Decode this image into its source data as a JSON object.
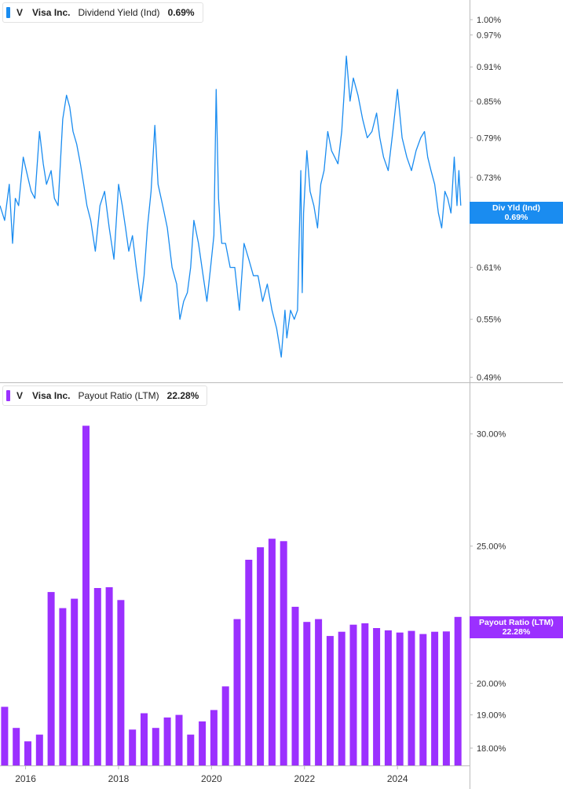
{
  "colors": {
    "yield": "#1a8cf0",
    "payout": "#9b30ff",
    "axis": "#bbbbbb",
    "text": "#333333"
  },
  "chart_data": [
    {
      "type": "line",
      "ticker": "V",
      "company": "Visa Inc.",
      "metric": "Dividend Yield (Ind)",
      "current_value": "0.69%",
      "badge_label": "Div Yld (Ind)",
      "badge_value": "0.69%",
      "y_scale": "log",
      "y_ticks": [
        "1.00%",
        "0.97%",
        "0.91%",
        "0.85%",
        "0.79%",
        "0.73%",
        "0.67%",
        "0.61%",
        "0.55%",
        "0.49%"
      ],
      "y_tick_values": [
        1.0,
        0.97,
        0.91,
        0.85,
        0.79,
        0.73,
        0.67,
        0.61,
        0.55,
        0.49
      ],
      "ylim": [
        0.485,
        1.04
      ],
      "xlim": [
        2015.45,
        2025.55
      ],
      "x": [
        2015.45,
        2015.55,
        2015.65,
        2015.72,
        2015.78,
        2015.85,
        2015.95,
        2016.05,
        2016.12,
        2016.2,
        2016.3,
        2016.38,
        2016.45,
        2016.55,
        2016.62,
        2016.7,
        2016.8,
        2016.88,
        2016.95,
        2017.02,
        2017.1,
        2017.18,
        2017.25,
        2017.32,
        2017.4,
        2017.5,
        2017.6,
        2017.7,
        2017.8,
        2017.9,
        2018.0,
        2018.08,
        2018.15,
        2018.22,
        2018.3,
        2018.38,
        2018.48,
        2018.55,
        2018.62,
        2018.7,
        2018.78,
        2018.85,
        2018.95,
        2019.05,
        2019.15,
        2019.25,
        2019.32,
        2019.4,
        2019.48,
        2019.55,
        2019.62,
        2019.72,
        2019.82,
        2019.9,
        2019.98,
        2020.05,
        2020.1,
        2020.15,
        2020.18,
        2020.22,
        2020.3,
        2020.4,
        2020.5,
        2020.6,
        2020.7,
        2020.8,
        2020.9,
        2021.0,
        2021.1,
        2021.2,
        2021.3,
        2021.4,
        2021.5,
        2021.58,
        2021.62,
        2021.7,
        2021.78,
        2021.85,
        2021.92,
        2021.95,
        2021.98,
        2022.05,
        2022.12,
        2022.2,
        2022.28,
        2022.35,
        2022.42,
        2022.5,
        2022.58,
        2022.65,
        2022.72,
        2022.8,
        2022.85,
        2022.9,
        2022.98,
        2023.05,
        2023.15,
        2023.25,
        2023.35,
        2023.45,
        2023.55,
        2023.62,
        2023.7,
        2023.8,
        2023.9,
        2024.0,
        2024.1,
        2024.2,
        2024.3,
        2024.4,
        2024.5,
        2024.58,
        2024.65,
        2024.72,
        2024.8,
        2024.88,
        2024.95,
        2025.02,
        2025.08,
        2025.15,
        2025.22,
        2025.28,
        2025.32,
        2025.36
      ],
      "values": [
        0.69,
        0.67,
        0.72,
        0.64,
        0.7,
        0.69,
        0.76,
        0.73,
        0.71,
        0.7,
        0.8,
        0.75,
        0.72,
        0.74,
        0.7,
        0.69,
        0.82,
        0.86,
        0.84,
        0.8,
        0.78,
        0.75,
        0.72,
        0.69,
        0.67,
        0.63,
        0.69,
        0.71,
        0.66,
        0.62,
        0.72,
        0.69,
        0.66,
        0.63,
        0.65,
        0.61,
        0.57,
        0.6,
        0.66,
        0.71,
        0.81,
        0.72,
        0.69,
        0.66,
        0.61,
        0.59,
        0.55,
        0.57,
        0.58,
        0.61,
        0.67,
        0.64,
        0.6,
        0.57,
        0.61,
        0.65,
        0.87,
        0.7,
        0.67,
        0.64,
        0.64,
        0.61,
        0.61,
        0.56,
        0.64,
        0.62,
        0.6,
        0.6,
        0.57,
        0.59,
        0.56,
        0.54,
        0.51,
        0.56,
        0.53,
        0.56,
        0.55,
        0.56,
        0.74,
        0.58,
        0.68,
        0.77,
        0.71,
        0.69,
        0.66,
        0.72,
        0.74,
        0.8,
        0.77,
        0.76,
        0.75,
        0.8,
        0.86,
        0.93,
        0.85,
        0.89,
        0.86,
        0.82,
        0.79,
        0.8,
        0.83,
        0.79,
        0.76,
        0.74,
        0.8,
        0.87,
        0.79,
        0.76,
        0.74,
        0.77,
        0.79,
        0.8,
        0.76,
        0.74,
        0.72,
        0.68,
        0.66,
        0.71,
        0.7,
        0.68,
        0.76,
        0.69,
        0.74,
        0.69
      ]
    },
    {
      "type": "bar",
      "ticker": "V",
      "company": "Visa Inc.",
      "metric": "Payout Ratio (LTM)",
      "current_value": "22.28%",
      "badge_label": "Payout Ratio (LTM)",
      "badge_value": "22.28%",
      "y_scale": "log",
      "y_ticks": [
        "30.00%",
        "25.00%",
        "20.00%",
        "19.00%",
        "18.00%"
      ],
      "y_tick_values": [
        30.0,
        25.0,
        20.0,
        19.0,
        18.0
      ],
      "ylim": [
        17.5,
        32.5
      ],
      "xlim": [
        2015.45,
        2025.55
      ],
      "x": [
        2015.55,
        2015.8,
        2016.05,
        2016.3,
        2016.55,
        2016.8,
        2017.05,
        2017.3,
        2017.55,
        2017.8,
        2018.05,
        2018.3,
        2018.55,
        2018.8,
        2019.05,
        2019.3,
        2019.55,
        2019.8,
        2020.05,
        2020.3,
        2020.55,
        2020.8,
        2021.05,
        2021.3,
        2021.55,
        2021.8,
        2022.05,
        2022.3,
        2022.55,
        2022.8,
        2023.05,
        2023.3,
        2023.55,
        2023.8,
        2024.05,
        2024.3,
        2024.55,
        2024.8,
        2025.05,
        2025.3
      ],
      "values": [
        19.25,
        18.6,
        18.2,
        18.4,
        23.2,
        22.6,
        22.95,
        30.4,
        23.35,
        23.38,
        22.9,
        18.55,
        19.05,
        18.6,
        18.92,
        19.0,
        18.4,
        18.8,
        19.15,
        19.9,
        22.2,
        24.45,
        24.95,
        25.3,
        25.2,
        22.65,
        22.1,
        22.2,
        21.6,
        21.75,
        22.0,
        22.05,
        21.88,
        21.8,
        21.72,
        21.78,
        21.67,
        21.75,
        21.76,
        22.28
      ]
    }
  ],
  "x_axis": {
    "ticks": [
      "2016",
      "2018",
      "2020",
      "2022",
      "2024"
    ],
    "tick_values": [
      2016,
      2018,
      2020,
      2022,
      2024
    ]
  }
}
